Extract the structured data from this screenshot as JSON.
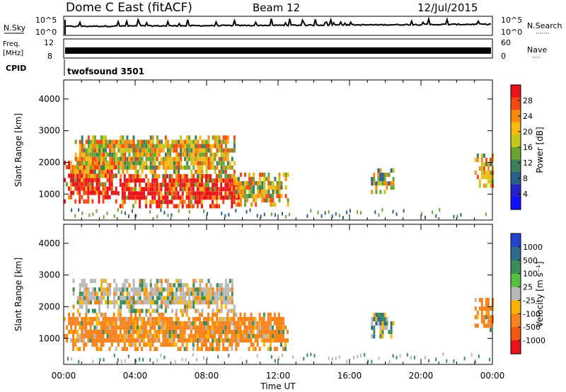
{
  "header": {
    "title": "Dome C East (fitACF)",
    "beam": "Beam 12",
    "date": "12/Jul/2015"
  },
  "nsky_panel": {
    "left_label": "N.Sky",
    "left_ticks": [
      "10^5",
      "10^0"
    ],
    "right_ticks": [
      "10^5",
      "10^0"
    ],
    "right_label": "N.Search",
    "right_dots": "·······"
  },
  "freq_panel": {
    "left_label_1": "Freq.",
    "left_label_2": "[MHz]",
    "left_ticks": [
      "12",
      "8"
    ],
    "right_ticks": [
      "60",
      "0"
    ],
    "right_label": "Nave",
    "right_dots": "····"
  },
  "cpid_panel": {
    "label": "CPID",
    "program": "twofsound 3501"
  },
  "power_panel": {
    "ylabel": "Slant Range [km]",
    "yticks": [
      "4000",
      "3000",
      "2000",
      "1000"
    ],
    "colorbar": {
      "label": "Power [dB]",
      "ticks": [
        "28",
        "24",
        "20",
        "16",
        "12",
        "8",
        "4"
      ],
      "colors": [
        "#e8141a",
        "#f14a14",
        "#f88a10",
        "#fbb914",
        "#c0c820",
        "#6aa532",
        "#3e7f5a",
        "#2c5f8e",
        "#2323c8",
        "#1010ff"
      ]
    }
  },
  "velocity_panel": {
    "ylabel": "Slant Range [km]",
    "yticks": [
      "4000",
      "3000",
      "2000",
      "1000"
    ],
    "colorbar": {
      "label": "Velocity [m s⁻¹]",
      "ticks": [
        "1000",
        "500",
        "100",
        "25",
        "-25",
        "-100",
        "-500",
        "-1000"
      ],
      "colors": [
        "#2244cc",
        "#2f6b8e",
        "#3c8c5a",
        "#55c040",
        "#b8b8b8",
        "#ffb400",
        "#f8821c",
        "#f05a14",
        "#e8141a"
      ]
    }
  },
  "xaxis": {
    "label": "Time UT",
    "ticks": [
      "00:00",
      "04:00",
      "08:00",
      "12:00",
      "16:00",
      "20:00",
      "00:00"
    ]
  },
  "chart_data": [
    {
      "type": "heatmap",
      "title": "Power",
      "xlabel": "Time UT",
      "ylabel": "Slant Range [km]",
      "xlim": [
        0,
        24
      ],
      "ylim": [
        180,
        4600
      ],
      "colorbar_label": "Power [dB]",
      "colorbar_range": [
        0,
        32
      ],
      "regions": [
        {
          "t0": 0.0,
          "t1": 3.0,
          "r0": 700,
          "r1": 2000,
          "level": "strong"
        },
        {
          "t0": 3.0,
          "t1": 10.0,
          "r0": 550,
          "r1": 1600,
          "level": "strong"
        },
        {
          "t0": 0.5,
          "t1": 9.5,
          "r0": 1500,
          "r1": 2800,
          "level": "moderate"
        },
        {
          "t0": 9.5,
          "t1": 12.5,
          "r0": 600,
          "r1": 1600,
          "level": "moderate"
        },
        {
          "t0": 17.2,
          "t1": 18.5,
          "r0": 1000,
          "r1": 1800,
          "level": "weak"
        },
        {
          "t0": 23.0,
          "t1": 24.0,
          "r0": 1200,
          "r1": 2200,
          "level": "moderate"
        }
      ]
    },
    {
      "type": "heatmap",
      "title": "Velocity",
      "xlabel": "Time UT",
      "ylabel": "Slant Range [km]",
      "xlim": [
        0,
        24
      ],
      "ylim": [
        180,
        4600
      ],
      "colorbar_label": "Velocity [m s⁻¹]",
      "colorbar_range": [
        -1000,
        1000
      ],
      "regions": [
        {
          "t0": 0.0,
          "t1": 12.5,
          "r0": 600,
          "r1": 1800,
          "level": "-100"
        },
        {
          "t0": 0.5,
          "t1": 9.5,
          "r0": 1800,
          "r1": 2800,
          "level": "-25"
        },
        {
          "t0": 17.2,
          "t1": 18.5,
          "r0": 1000,
          "r1": 1800,
          "level": "100"
        },
        {
          "t0": 23.0,
          "t1": 24.0,
          "r0": 1200,
          "r1": 2200,
          "level": "-100"
        }
      ]
    }
  ]
}
